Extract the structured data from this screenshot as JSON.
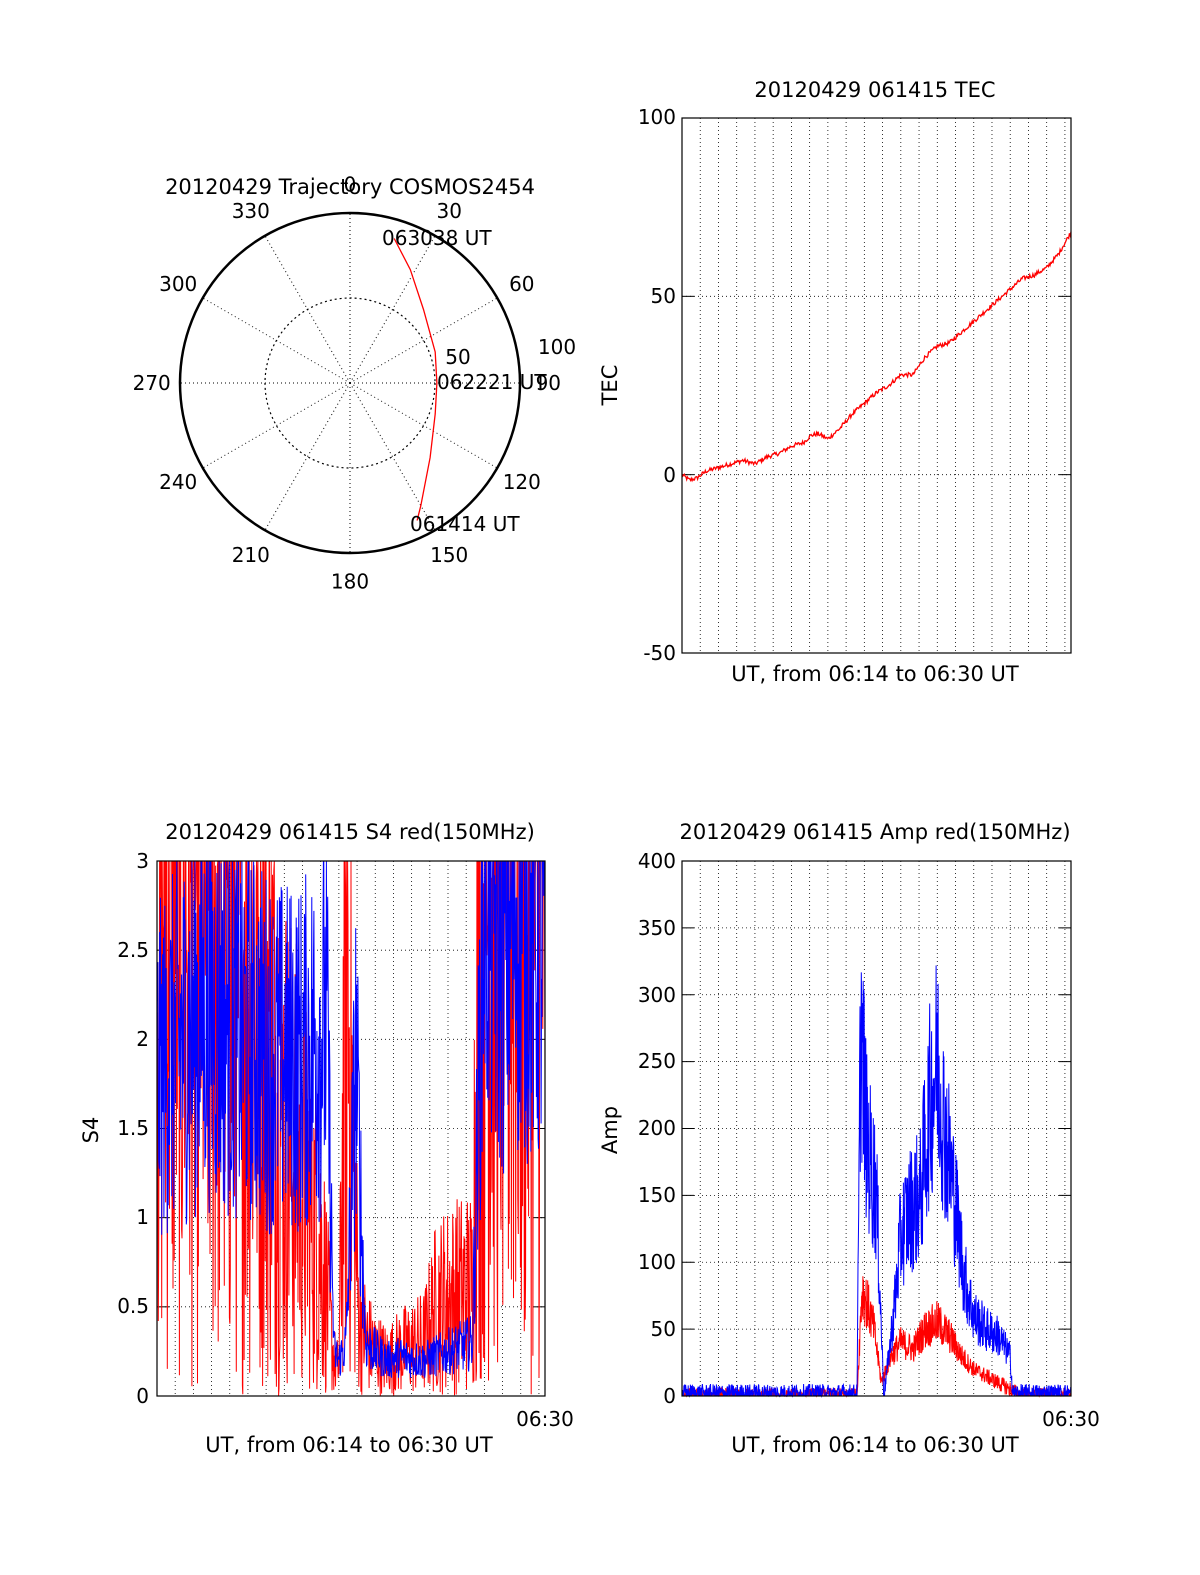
{
  "colors": {
    "red": "#ff0000",
    "blue": "#0000ff",
    "axis": "#000000",
    "grid": "#000000",
    "background": "#ffffff"
  },
  "polar": {
    "title": "20120429 Trajectory COSMOS2454",
    "azimuth_labels": [
      "0",
      "30",
      "60",
      "90",
      "120",
      "150",
      "180",
      "210",
      "240",
      "270",
      "300",
      "330"
    ],
    "ring_labels": [
      "50",
      "100"
    ],
    "ring_values": [
      50,
      100
    ],
    "track_times": {
      "end": "063038 UT",
      "mid": "062221 UT",
      "start": "061414 UT"
    },
    "chart_data": {
      "type": "polar",
      "title": "20120429 Trajectory COSMOS2454",
      "coordinates": "azimuth (deg) / radius (deg from zenith)",
      "track": [
        {
          "az": 17,
          "r": 80
        },
        {
          "az": 28,
          "r": 68
        },
        {
          "az": 45,
          "r": 55
        },
        {
          "az": 70,
          "r": 48
        },
        {
          "az": 90,
          "r": 46
        },
        {
          "az": 110,
          "r": 48
        },
        {
          "az": 133,
          "r": 58
        },
        {
          "az": 150,
          "r": 75
        },
        {
          "az": 154,
          "r": 81
        }
      ],
      "track_labels": [
        {
          "text": "063038 UT",
          "az": 17,
          "r": 80
        },
        {
          "text": "062221 UT",
          "az": 90,
          "r": 46
        },
        {
          "text": "061414 UT",
          "az": 154,
          "r": 81
        }
      ]
    }
  },
  "tec": {
    "title": "20120429 061415 TEC",
    "ylabel": "TEC",
    "xlabel": "UT, from 06:14 to 06:30 UT",
    "yticks": [
      "100",
      "50",
      "0",
      "-50"
    ],
    "chart_data": {
      "type": "line",
      "title": "20120429 061415 TEC",
      "xlabel": "UT, from 06:14 to 06:30 UT",
      "ylabel": "TEC",
      "xlim": [
        0,
        16
      ],
      "ylim": [
        -50,
        100
      ],
      "yticks": [
        -50,
        0,
        50,
        100
      ],
      "grid": true,
      "series": [
        {
          "color": "#ff0000",
          "x": [
            0,
            0.3,
            0.6,
            1.0,
            1.5,
            2.0,
            2.5,
            3.0,
            3.5,
            4.0,
            4.5,
            5.0,
            5.3,
            5.6,
            6.0,
            6.5,
            7.0,
            7.5,
            8.0,
            8.5,
            9.0,
            9.5,
            10.0,
            10.5,
            11.0,
            11.5,
            12.0,
            12.5,
            13.0,
            13.5,
            14.0,
            14.5,
            15.0,
            15.5,
            16.0
          ],
          "y": [
            0,
            -1.5,
            -1,
            1,
            2,
            3,
            4,
            3,
            5,
            6,
            8,
            9,
            11,
            11.5,
            10,
            13,
            17,
            20,
            23,
            25,
            28,
            28,
            33,
            36,
            37,
            40,
            43,
            46,
            49,
            52,
            55,
            56,
            58,
            62,
            68
          ]
        }
      ]
    }
  },
  "s4": {
    "title": "20120429 061415 S4 red(150MHz)",
    "ylabel": "S4",
    "xlabel": "UT, from 06:14 to 06:30 UT",
    "xtick_end": "06:30",
    "yticks": [
      "3",
      "2.5",
      "2",
      "1.5",
      "1",
      "0.5",
      "0"
    ],
    "chart_data": {
      "type": "line",
      "title": "20120429 061415 S4 red(150MHz)",
      "xlabel": "UT, from 06:14 to 06:30 UT",
      "ylabel": "S4",
      "xlim": [
        0,
        16
      ],
      "ylim": [
        0,
        3
      ],
      "xtick_end": "06:30",
      "yticks": [
        0,
        0.5,
        1,
        1.5,
        2,
        2.5,
        3
      ],
      "grid": true,
      "series": [
        {
          "color": "#ff0000",
          "x": [
            0,
            1,
            2,
            3,
            4,
            4.8,
            5.2,
            6.0,
            6.8,
            7.3,
            7.5,
            7.8,
            8.3,
            8.7,
            9.0,
            9.5,
            10,
            11,
            11.5,
            12,
            13,
            13.3,
            13.8,
            14.5,
            15,
            15.5,
            16
          ],
          "y": [
            3,
            2.8,
            3,
            2.6,
            2.5,
            2.0,
            1.5,
            1.2,
            0.8,
            0.2,
            0.15,
            2.6,
            0.5,
            0.3,
            0.25,
            0.2,
            0.25,
            0.3,
            0.5,
            0.55,
            0.6,
            3,
            3,
            3,
            3,
            3,
            3
          ]
        },
        {
          "color": "#0000ff",
          "x": [
            0,
            1,
            2,
            3,
            4,
            5,
            6,
            7,
            7.3,
            7.5,
            7.8,
            8.2,
            8.6,
            9.0,
            9.5,
            10,
            11,
            12,
            13,
            13.5,
            14,
            15,
            16
          ],
          "y": [
            1.8,
            2.0,
            2.2,
            2.1,
            2.0,
            1.9,
            1.9,
            2.1,
            0.25,
            0.2,
            0.3,
            1.9,
            0.3,
            0.25,
            0.2,
            0.22,
            0.2,
            0.25,
            0.3,
            3,
            2.5,
            2.8,
            2.5
          ]
        }
      ]
    }
  },
  "amp": {
    "title": "20120429 061415 Amp red(150MHz)",
    "ylabel": "Amp",
    "xlabel": "UT, from 06:14 to 06:30 UT",
    "xtick_end": "06:30",
    "yticks": [
      "400",
      "350",
      "300",
      "250",
      "200",
      "150",
      "100",
      "50",
      "0"
    ],
    "chart_data": {
      "type": "line",
      "title": "20120429 061415 Amp red(150MHz)",
      "xlabel": "UT, from 06:14 to 06:30 UT",
      "ylabel": "Amp",
      "xlim": [
        0,
        16
      ],
      "ylim": [
        0,
        400
      ],
      "xtick_end": "06:30",
      "yticks": [
        0,
        50,
        100,
        150,
        200,
        250,
        300,
        350,
        400
      ],
      "grid": true,
      "series": [
        {
          "color": "#ff0000",
          "x": [
            0,
            7.2,
            7.4,
            7.6,
            7.9,
            8.2,
            8.6,
            9.0,
            9.5,
            10.0,
            10.5,
            11.0,
            11.5,
            12.0,
            12.5,
            13.0,
            13.5,
            14.0,
            14.5,
            15.0,
            16.0
          ],
          "y": [
            0,
            0,
            80,
            70,
            50,
            10,
            30,
            40,
            35,
            50,
            55,
            45,
            30,
            20,
            15,
            10,
            5,
            0,
            0,
            0,
            0
          ]
        },
        {
          "color": "#0000ff",
          "x": [
            0,
            7.2,
            7.35,
            7.6,
            8.0,
            8.3,
            8.7,
            9.0,
            9.4,
            9.8,
            10.2,
            10.5,
            10.8,
            11.2,
            11.6,
            12.0,
            12.5,
            13.0,
            13.5,
            13.6,
            14.0,
            15.0,
            16.0
          ],
          "y": [
            2,
            2,
            283,
            190,
            150,
            0,
            60,
            120,
            140,
            150,
            220,
            250,
            200,
            150,
            90,
            60,
            50,
            45,
            30,
            2,
            2,
            2,
            2
          ]
        }
      ]
    }
  }
}
